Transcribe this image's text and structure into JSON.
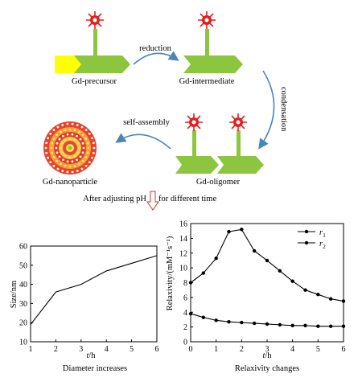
{
  "scheme": {
    "labels": {
      "precursor": "Gd-precursor",
      "intermediate": "Gd-intermediate",
      "oligomer": "Gd-oligomer",
      "nanoparticle": "Gd-nanoparticle"
    },
    "arrows": {
      "reduction": "reduction",
      "condensation": "condensation",
      "self_assembly": "self-assembly"
    },
    "adjust_left": "After adjusting pH",
    "adjust_right": "for different time",
    "colors": {
      "green": "#8cc63e",
      "yellow": "#ffff00",
      "red": "#e02020",
      "arrow_blue": "#4a86b8",
      "pH_arrow": "#c0392b"
    }
  },
  "chart_data": [
    {
      "type": "line",
      "x": [
        1,
        2,
        3,
        4,
        5,
        6
      ],
      "series": [
        {
          "values": [
            19,
            36,
            40,
            47,
            51,
            55
          ]
        }
      ],
      "xlabel_italic": "t",
      "xlabel_unit": "/h",
      "ylabel": "Size/nm",
      "caption": "Diameter increases",
      "xlim": [
        1,
        6
      ],
      "ylim": [
        10,
        60
      ],
      "xticks": [
        1,
        2,
        3,
        4,
        5,
        6
      ],
      "yticks": [
        10,
        20,
        30,
        40,
        50,
        60
      ],
      "grid": false
    },
    {
      "type": "line",
      "x": [
        0,
        0.5,
        1,
        1.5,
        2,
        2.5,
        3,
        3.5,
        4,
        4.5,
        5,
        5.5,
        6
      ],
      "series": [
        {
          "name": "r1",
          "name_base": "r",
          "name_sub": "1",
          "marker": "circle",
          "values": [
            8.0,
            9.3,
            11.3,
            14.9,
            15.2,
            12.3,
            11.0,
            9.6,
            8.2,
            7.0,
            6.4,
            5.8,
            5.5
          ]
        },
        {
          "name": "r2",
          "name_base": "r",
          "name_sub": "2",
          "marker": "circle",
          "values": [
            3.8,
            3.3,
            2.9,
            2.7,
            2.6,
            2.5,
            2.4,
            2.3,
            2.2,
            2.2,
            2.1,
            2.1,
            2.1
          ]
        }
      ],
      "xlabel_italic": "t",
      "xlabel_unit": "/h",
      "ylabel": "Relaxivity/(mM⁻¹s⁻¹)",
      "caption": "Relaxivity changes",
      "xlim": [
        0,
        6
      ],
      "ylim": [
        0,
        16
      ],
      "xticks": [
        0,
        1,
        2,
        3,
        4,
        5,
        6
      ],
      "yticks": [
        0,
        2,
        4,
        6,
        8,
        10,
        12,
        14,
        16
      ],
      "legend": "top-right",
      "grid": false
    }
  ]
}
